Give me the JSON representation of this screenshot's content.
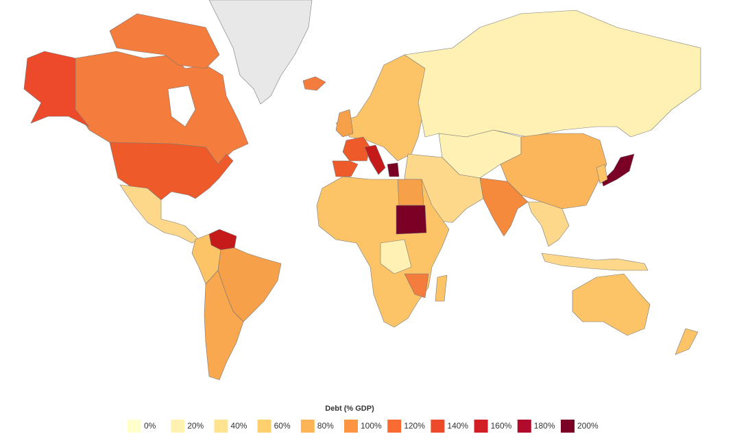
{
  "legend": {
    "title": "Debt (% GDP)",
    "items": [
      {
        "value": 0,
        "label": "0%",
        "color": "#ffffcc"
      },
      {
        "value": 20,
        "label": "20%",
        "color": "#fff2b0"
      },
      {
        "value": 40,
        "label": "40%",
        "color": "#fee391"
      },
      {
        "value": 60,
        "label": "60%",
        "color": "#fed06d"
      },
      {
        "value": 80,
        "label": "80%",
        "color": "#fdb456"
      },
      {
        "value": 100,
        "label": "100%",
        "color": "#fd9440"
      },
      {
        "value": 120,
        "label": "120%",
        "color": "#f96b30"
      },
      {
        "value": 140,
        "label": "140%",
        "color": "#ec4a2a"
      },
      {
        "value": 160,
        "label": "160%",
        "color": "#d21f26"
      },
      {
        "value": 180,
        "label": "180%",
        "color": "#b00b2c"
      },
      {
        "value": 200,
        "label": "200%",
        "color": "#7a0026"
      }
    ]
  }
}
